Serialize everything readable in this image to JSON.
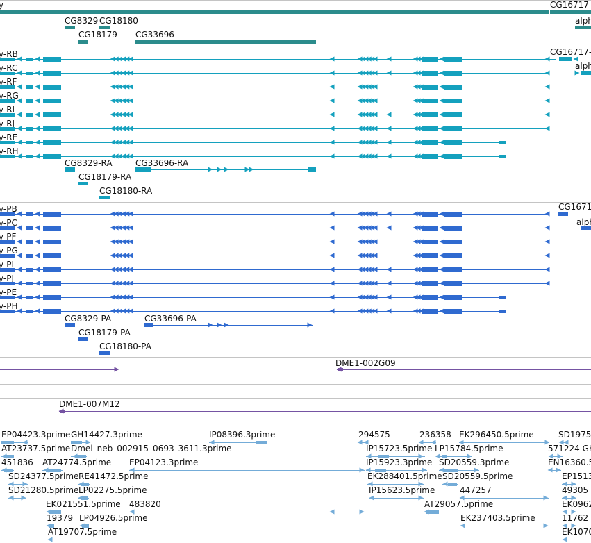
{
  "colors": {
    "gene": "#2b8c8c",
    "rna": "#14a1be",
    "protein": "#2f6ad0",
    "clone": "#7553a3",
    "est": "#74acd8",
    "separator": "#c4c4c4"
  },
  "tracks": {
    "genes": {
      "labels": [
        "y",
        "CG16717",
        "CG8329",
        "CG18180",
        "CG18179",
        "CG33696",
        "alph"
      ]
    },
    "rna": {
      "labels": [
        "y-RB",
        "y-RC",
        "y-RF",
        "y-RG",
        "y-RI",
        "y-RJ",
        "y-RE",
        "y-RH",
        "CG16717-",
        "alph",
        "CG8329-RA",
        "CG33696-RA",
        "CG18179-RA",
        "CG18180-RA"
      ]
    },
    "proteins": {
      "labels": [
        "y-PB",
        "y-PC",
        "y-PF",
        "y-PG",
        "y-PI",
        "y-PJ",
        "y-PE",
        "y-PH",
        "CG1671",
        "alph",
        "CG8329-PA",
        "CG33696-PA",
        "CG18179-PA",
        "CG18180-PA"
      ]
    },
    "clones": {
      "labels": [
        "DME1-002G09",
        "DME1-007M12"
      ]
    },
    "ests": {
      "labels": [
        "EP04423.3prime",
        "GH14427.3prime",
        "IP08396.3prime",
        "294575",
        "236358",
        "EK296450.5prime",
        "SD1975",
        "AT23737.5prime",
        "Dmel_neb_002915_0693_3611.3prime",
        "IP15723.5prime",
        "LP15784.5prime",
        "571224 GH",
        "451836",
        "AT24774.5prime",
        "EP04123.3prime",
        "IP15923.3prime",
        "SD20559.3prime",
        "EN16360.5",
        "SD24377.5prime",
        "RE41472.5prime",
        "EK288401.5prime",
        "SD20559.5prime",
        "EP1513",
        "SD21280.5prime",
        "LP02275.5prime",
        "IP15623.5prime",
        "447257",
        "49305",
        "EK021551.5prime",
        "483820",
        "AT29057.5prime",
        "EK0962",
        "19379",
        "LP04926.5prime",
        "EK237403.5prime",
        "11762",
        "AT19707.5prime",
        "EK1070"
      ]
    }
  }
}
